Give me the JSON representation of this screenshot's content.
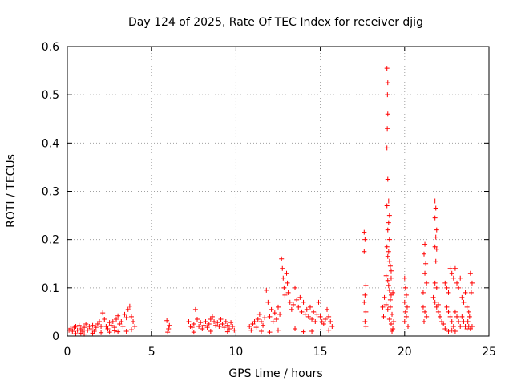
{
  "chart_data": {
    "type": "scatter",
    "title": "Day 124 of 2025, Rate Of TEC Index for receiver djig",
    "xlabel": "GPS time / hours",
    "ylabel": "ROTI / TECUs",
    "xlim": [
      0,
      25
    ],
    "ylim": [
      0,
      0.6
    ],
    "xticks": [
      0,
      5,
      10,
      15,
      20,
      25
    ],
    "xtick_labels": [
      "0",
      "5",
      "10",
      "15",
      "20",
      "25"
    ],
    "yticks": [
      0,
      0.1,
      0.2,
      0.3,
      0.4,
      0.5,
      0.6
    ],
    "ytick_labels": [
      "0",
      "0.1",
      "0.2",
      "0.3",
      "0.4",
      "0.5",
      "0.6"
    ],
    "grid": true,
    "marker": "+",
    "color": "#ff0000",
    "series": [
      {
        "name": "ROTI",
        "points": [
          [
            0.1,
            0.012
          ],
          [
            0.2,
            0.015
          ],
          [
            0.3,
            0.01
          ],
          [
            0.4,
            0.018
          ],
          [
            0.5,
            0.02
          ],
          [
            0.6,
            0.012
          ],
          [
            0.7,
            0.022
          ],
          [
            0.8,
            0.015
          ],
          [
            0.9,
            0.01
          ],
          [
            1.0,
            0.018
          ],
          [
            1.1,
            0.025
          ],
          [
            1.2,
            0.012
          ],
          [
            1.3,
            0.02
          ],
          [
            1.4,
            0.015
          ],
          [
            1.5,
            0.022
          ],
          [
            1.6,
            0.01
          ],
          [
            1.7,
            0.018
          ],
          [
            1.8,
            0.025
          ],
          [
            1.9,
            0.03
          ],
          [
            2.0,
            0.02
          ],
          [
            2.1,
            0.048
          ],
          [
            2.2,
            0.035
          ],
          [
            2.3,
            0.02
          ],
          [
            2.4,
            0.015
          ],
          [
            2.5,
            0.028
          ],
          [
            2.6,
            0.022
          ],
          [
            2.7,
            0.03
          ],
          [
            2.8,
            0.018
          ],
          [
            2.9,
            0.035
          ],
          [
            3.0,
            0.042
          ],
          [
            3.1,
            0.025
          ],
          [
            3.2,
            0.03
          ],
          [
            3.3,
            0.02
          ],
          [
            3.4,
            0.045
          ],
          [
            3.5,
            0.038
          ],
          [
            3.6,
            0.055
          ],
          [
            3.7,
            0.062
          ],
          [
            3.8,
            0.04
          ],
          [
            3.9,
            0.03
          ],
          [
            4.0,
            0.02
          ],
          [
            0.5,
            0.005
          ],
          [
            1.5,
            0.006
          ],
          [
            2.5,
            0.008
          ],
          [
            3.5,
            0.01
          ],
          [
            1.0,
            0.004
          ],
          [
            2.0,
            0.007
          ],
          [
            3.0,
            0.009
          ],
          [
            0.8,
            0.006
          ],
          [
            2.8,
            0.011
          ],
          [
            3.8,
            0.013
          ],
          [
            5.9,
            0.032
          ],
          [
            6.0,
            0.015
          ],
          [
            5.95,
            0.008
          ],
          [
            6.05,
            0.022
          ],
          [
            7.2,
            0.03
          ],
          [
            7.3,
            0.02
          ],
          [
            7.4,
            0.018
          ],
          [
            7.5,
            0.025
          ],
          [
            7.6,
            0.055
          ],
          [
            7.7,
            0.035
          ],
          [
            7.8,
            0.02
          ],
          [
            7.9,
            0.028
          ],
          [
            8.0,
            0.015
          ],
          [
            8.1,
            0.022
          ],
          [
            8.2,
            0.03
          ],
          [
            8.3,
            0.018
          ],
          [
            8.4,
            0.025
          ],
          [
            8.5,
            0.035
          ],
          [
            8.6,
            0.04
          ],
          [
            8.7,
            0.03
          ],
          [
            8.8,
            0.022
          ],
          [
            8.9,
            0.028
          ],
          [
            9.0,
            0.02
          ],
          [
            9.1,
            0.035
          ],
          [
            9.2,
            0.025
          ],
          [
            9.3,
            0.018
          ],
          [
            9.4,
            0.03
          ],
          [
            9.5,
            0.022
          ],
          [
            9.6,
            0.015
          ],
          [
            9.7,
            0.028
          ],
          [
            9.8,
            0.02
          ],
          [
            9.9,
            0.012
          ],
          [
            7.5,
            0.008
          ],
          [
            8.5,
            0.01
          ],
          [
            9.5,
            0.009
          ],
          [
            10.8,
            0.02
          ],
          [
            10.9,
            0.012
          ],
          [
            11.0,
            0.025
          ],
          [
            11.1,
            0.03
          ],
          [
            11.2,
            0.018
          ],
          [
            11.3,
            0.035
          ],
          [
            11.4,
            0.045
          ],
          [
            11.5,
            0.03
          ],
          [
            11.6,
            0.022
          ],
          [
            11.7,
            0.038
          ],
          [
            11.8,
            0.095
          ],
          [
            11.9,
            0.07
          ],
          [
            12.0,
            0.04
          ],
          [
            12.1,
            0.055
          ],
          [
            12.2,
            0.03
          ],
          [
            12.3,
            0.048
          ],
          [
            12.4,
            0.035
          ],
          [
            12.5,
            0.06
          ],
          [
            12.6,
            0.045
          ],
          [
            12.7,
            0.16
          ],
          [
            12.75,
            0.14
          ],
          [
            12.8,
            0.12
          ],
          [
            12.85,
            0.1
          ],
          [
            12.9,
            0.085
          ],
          [
            13.0,
            0.13
          ],
          [
            13.05,
            0.11
          ],
          [
            13.1,
            0.09
          ],
          [
            13.2,
            0.07
          ],
          [
            13.3,
            0.055
          ],
          [
            13.4,
            0.065
          ],
          [
            13.5,
            0.1
          ],
          [
            13.6,
            0.075
          ],
          [
            13.7,
            0.06
          ],
          [
            13.8,
            0.08
          ],
          [
            13.9,
            0.05
          ],
          [
            14.0,
            0.07
          ],
          [
            14.1,
            0.045
          ],
          [
            14.2,
            0.055
          ],
          [
            14.3,
            0.04
          ],
          [
            14.4,
            0.06
          ],
          [
            14.5,
            0.035
          ],
          [
            14.6,
            0.05
          ],
          [
            14.7,
            0.03
          ],
          [
            14.8,
            0.045
          ],
          [
            14.9,
            0.07
          ],
          [
            15.0,
            0.04
          ],
          [
            15.1,
            0.03
          ],
          [
            15.2,
            0.025
          ],
          [
            15.3,
            0.035
          ],
          [
            15.4,
            0.055
          ],
          [
            15.5,
            0.04
          ],
          [
            15.6,
            0.03
          ],
          [
            15.7,
            0.02
          ],
          [
            11.5,
            0.01
          ],
          [
            12.5,
            0.012
          ],
          [
            13.5,
            0.015
          ],
          [
            14.5,
            0.01
          ],
          [
            15.5,
            0.012
          ],
          [
            12.0,
            0.008
          ],
          [
            14.0,
            0.009
          ],
          [
            17.6,
            0.215
          ],
          [
            17.65,
            0.2
          ],
          [
            17.6,
            0.175
          ],
          [
            17.7,
            0.105
          ],
          [
            17.65,
            0.085
          ],
          [
            17.6,
            0.07
          ],
          [
            17.7,
            0.05
          ],
          [
            17.65,
            0.03
          ],
          [
            17.7,
            0.02
          ],
          [
            18.7,
            0.06
          ],
          [
            18.75,
            0.04
          ],
          [
            18.8,
            0.08
          ],
          [
            18.95,
            0.555
          ],
          [
            19.0,
            0.525
          ],
          [
            18.98,
            0.5
          ],
          [
            19.0,
            0.46
          ],
          [
            18.97,
            0.43
          ],
          [
            18.95,
            0.39
          ],
          [
            19.0,
            0.325
          ],
          [
            19.05,
            0.28
          ],
          [
            18.95,
            0.27
          ],
          [
            19.1,
            0.25
          ],
          [
            19.05,
            0.235
          ],
          [
            19.0,
            0.22
          ],
          [
            19.1,
            0.2
          ],
          [
            18.95,
            0.185
          ],
          [
            19.05,
            0.175
          ],
          [
            19.0,
            0.165
          ],
          [
            19.1,
            0.155
          ],
          [
            19.15,
            0.145
          ],
          [
            19.2,
            0.135
          ],
          [
            18.9,
            0.125
          ],
          [
            19.0,
            0.115
          ],
          [
            19.05,
            0.105
          ],
          [
            19.1,
            0.095
          ],
          [
            19.2,
            0.085
          ],
          [
            19.15,
            0.075
          ],
          [
            18.9,
            0.065
          ],
          [
            19.0,
            0.055
          ],
          [
            19.25,
            0.045
          ],
          [
            19.1,
            0.035
          ],
          [
            19.2,
            0.025
          ],
          [
            19.3,
            0.015
          ],
          [
            19.25,
            0.01
          ],
          [
            19.15,
            0.06
          ],
          [
            19.3,
            0.09
          ],
          [
            19.2,
            0.12
          ],
          [
            19.35,
            0.03
          ],
          [
            20.0,
            0.12
          ],
          [
            20.05,
            0.1
          ],
          [
            20.1,
            0.085
          ],
          [
            20.0,
            0.07
          ],
          [
            20.15,
            0.06
          ],
          [
            20.05,
            0.05
          ],
          [
            20.1,
            0.04
          ],
          [
            20.0,
            0.03
          ],
          [
            20.2,
            0.02
          ],
          [
            21.1,
            0.09
          ],
          [
            21.2,
            0.19
          ],
          [
            21.15,
            0.17
          ],
          [
            21.25,
            0.15
          ],
          [
            21.2,
            0.13
          ],
          [
            21.3,
            0.11
          ],
          [
            21.1,
            0.06
          ],
          [
            21.2,
            0.05
          ],
          [
            21.3,
            0.04
          ],
          [
            21.15,
            0.03
          ],
          [
            21.8,
            0.28
          ],
          [
            21.85,
            0.265
          ],
          [
            21.8,
            0.245
          ],
          [
            21.9,
            0.22
          ],
          [
            21.85,
            0.205
          ],
          [
            21.8,
            0.185
          ],
          [
            21.9,
            0.18
          ],
          [
            21.85,
            0.155
          ],
          [
            21.8,
            0.11
          ],
          [
            21.9,
            0.1
          ],
          [
            21.7,
            0.08
          ],
          [
            21.8,
            0.07
          ],
          [
            21.9,
            0.06
          ],
          [
            22.0,
            0.05
          ],
          [
            22.1,
            0.04
          ],
          [
            22.2,
            0.03
          ],
          [
            22.3,
            0.025
          ],
          [
            22.0,
            0.065
          ],
          [
            22.4,
            0.11
          ],
          [
            22.5,
            0.1
          ],
          [
            22.6,
            0.09
          ],
          [
            22.7,
            0.14
          ],
          [
            22.8,
            0.13
          ],
          [
            22.9,
            0.12
          ],
          [
            23.0,
            0.14
          ],
          [
            23.1,
            0.11
          ],
          [
            23.2,
            0.1
          ],
          [
            23.3,
            0.12
          ],
          [
            23.4,
            0.08
          ],
          [
            23.5,
            0.07
          ],
          [
            23.6,
            0.09
          ],
          [
            23.7,
            0.06
          ],
          [
            23.8,
            0.05
          ],
          [
            23.9,
            0.13
          ],
          [
            24.0,
            0.11
          ],
          [
            23.95,
            0.09
          ],
          [
            23.85,
            0.04
          ],
          [
            23.75,
            0.03
          ],
          [
            22.5,
            0.06
          ],
          [
            22.6,
            0.05
          ],
          [
            22.7,
            0.04
          ],
          [
            22.8,
            0.03
          ],
          [
            22.9,
            0.02
          ],
          [
            23.0,
            0.05
          ],
          [
            23.1,
            0.04
          ],
          [
            23.2,
            0.03
          ],
          [
            23.3,
            0.02
          ],
          [
            23.4,
            0.04
          ],
          [
            23.5,
            0.03
          ],
          [
            23.6,
            0.02
          ],
          [
            23.7,
            0.015
          ],
          [
            23.8,
            0.02
          ],
          [
            23.9,
            0.015
          ],
          [
            24.0,
            0.02
          ],
          [
            22.4,
            0.015
          ],
          [
            22.6,
            0.01
          ],
          [
            22.8,
            0.012
          ],
          [
            23.0,
            0.01
          ]
        ]
      }
    ]
  }
}
